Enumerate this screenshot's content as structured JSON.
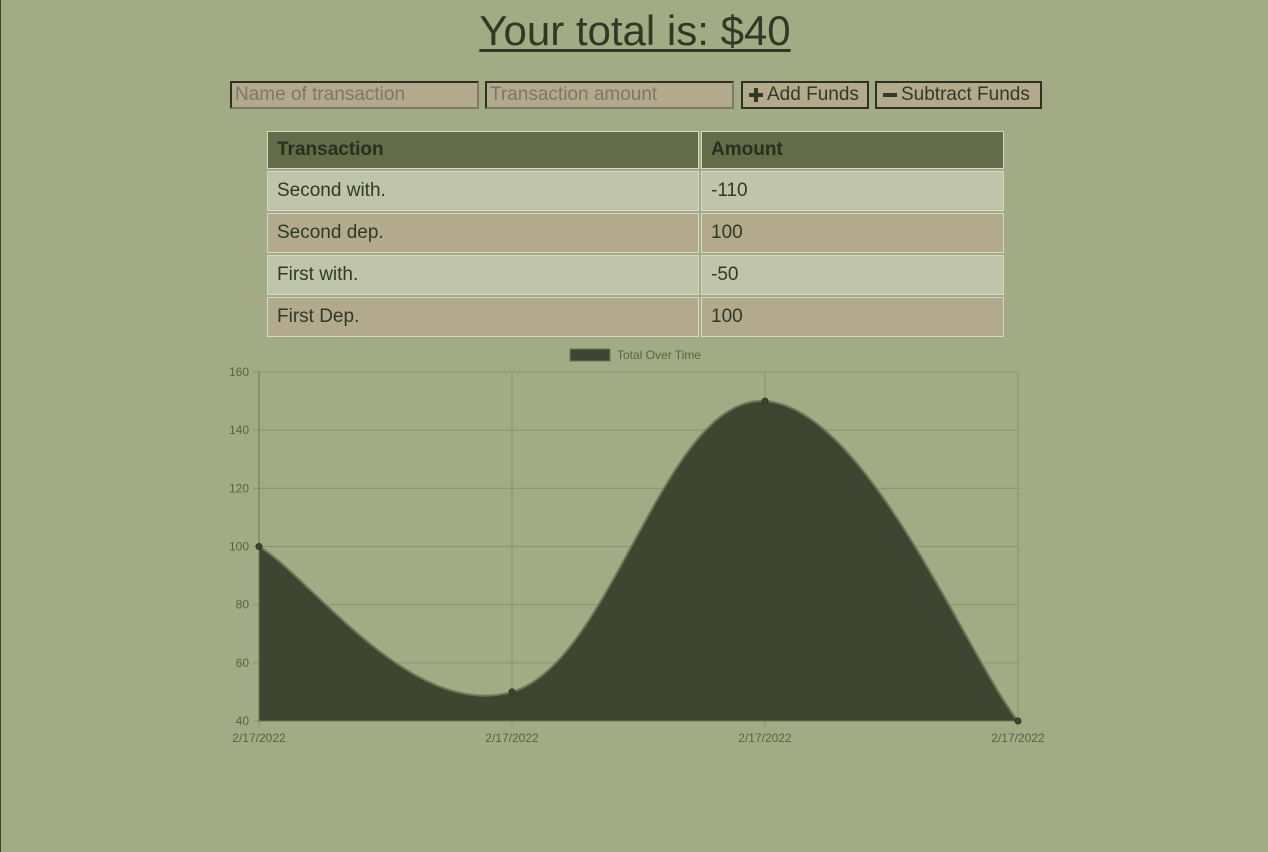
{
  "header": {
    "total_label": "Your total is: $40"
  },
  "form": {
    "name_placeholder": "Name of transaction",
    "amount_placeholder": "Transaction amount",
    "add_label": "Add Funds",
    "subtract_label": "Subtract Funds"
  },
  "table": {
    "headers": [
      "Transaction",
      "Amount"
    ],
    "rows": [
      {
        "name": "Second with.",
        "amount": "-110"
      },
      {
        "name": "Second dep.",
        "amount": "100"
      },
      {
        "name": "First with.",
        "amount": "-50"
      },
      {
        "name": "First Dep.",
        "amount": "100"
      }
    ]
  },
  "colors": {
    "background": "#a2ab84",
    "area_fill": "#3e4632",
    "header_cell": "#636b48",
    "row_light": "#bfc4aa",
    "row_dark": "#b3aa8e"
  },
  "icons": [
    "plus-icon",
    "minus-icon"
  ],
  "chart_data": {
    "type": "area",
    "x": [
      "2/17/2022",
      "2/17/2022",
      "2/17/2022",
      "2/17/2022"
    ],
    "series": [
      {
        "name": "Total Over Time",
        "values": [
          100,
          50,
          150,
          40
        ]
      }
    ],
    "ylim": [
      40,
      160
    ],
    "yticks": [
      160,
      140,
      120,
      100,
      80,
      60,
      40
    ],
    "grid": true,
    "legend": "top-center"
  }
}
